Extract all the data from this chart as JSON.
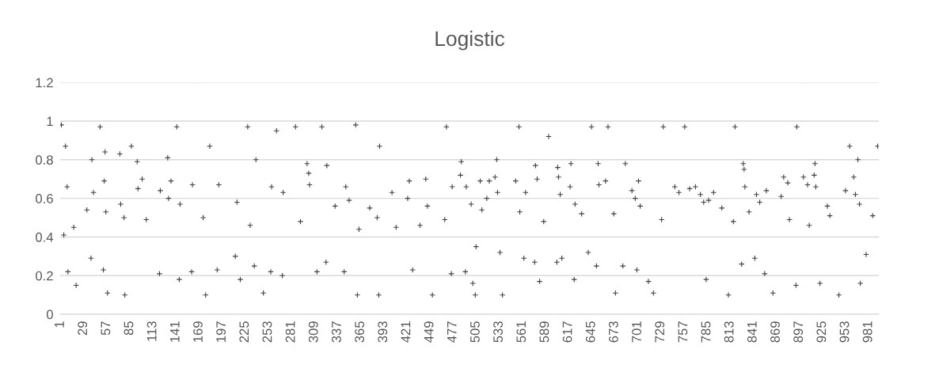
{
  "chart_data": {
    "type": "scatter",
    "title": "Logistic",
    "series": [
      {
        "color": "#404040",
        "marker": "cross",
        "x": [
          2,
          7,
          9,
          5,
          10,
          20,
          17,
          33,
          39,
          41,
          38,
          55,
          54,
          56,
          53,
          58,
          74,
          73,
          78,
          79,
          94,
          95,
          100,
          105,
          122,
          121,
          131,
          132,
          135,
          146,
          145,
          142,
          161,
          160,
          174,
          177,
          193,
          191,
          215,
          213,
          219,
          238,
          236,
          231,
          257,
          256,
          247,
          271,
          270,
          292,
          300,
          302,
          303,
          312,
          318,
          324,
          323,
          334,
          347,
          351,
          345,
          359,
          363,
          361,
          376,
          385,
          387,
          403,
          408,
          422,
          424,
          428,
          437,
          444,
          446,
          452,
          467,
          475,
          476,
          486,
          487,
          493,
          492,
          499,
          501,
          510,
          505,
          504,
          518,
          512,
          521,
          528,
          530,
          531,
          534,
          537,
          553,
          558,
          563,
          565,
          576,
          577,
          579,
          582,
          587,
          603,
          604,
          605,
          607,
          609,
          619,
          620,
          625,
          624,
          633,
          641,
          653,
          654,
          662,
          651,
          672,
          674,
          686,
          694,
          683,
          698,
          700,
          702,
          704,
          714,
          720,
          730,
          732,
          746,
          751,
          764,
          771,
          777,
          781,
          787,
          784,
          793,
          803,
          811,
          817,
          827,
          829,
          830,
          831,
          836,
          843,
          845,
          849,
          857,
          855,
          865,
          875,
          878,
          883,
          885,
          893,
          902,
          907,
          909,
          915,
          916,
          917,
          922,
          931,
          934,
          945,
          953,
          963,
          965,
          968,
          970,
          971,
          978,
          986,
          992,
          49,
          87,
          182,
          228,
          263,
          286,
          388,
          469,
          557,
          593,
          645,
          665,
          758,
          819,
          894,
          958
        ],
        "values": [
          0.98,
          0.87,
          0.66,
          0.41,
          0.22,
          0.15,
          0.45,
          0.54,
          0.8,
          0.63,
          0.29,
          0.84,
          0.69,
          0.53,
          0.23,
          0.11,
          0.57,
          0.83,
          0.5,
          0.1,
          0.79,
          0.65,
          0.7,
          0.49,
          0.64,
          0.21,
          0.81,
          0.6,
          0.69,
          0.57,
          0.18,
          0.97,
          0.67,
          0.22,
          0.5,
          0.1,
          0.67,
          0.23,
          0.58,
          0.3,
          0.18,
          0.8,
          0.25,
          0.46,
          0.66,
          0.22,
          0.11,
          0.63,
          0.2,
          0.48,
          0.78,
          0.73,
          0.67,
          0.22,
          0.97,
          0.77,
          0.27,
          0.56,
          0.66,
          0.59,
          0.22,
          0.98,
          0.44,
          0.1,
          0.55,
          0.5,
          0.1,
          0.63,
          0.45,
          0.6,
          0.69,
          0.23,
          0.46,
          0.7,
          0.56,
          0.1,
          0.49,
          0.21,
          0.66,
          0.72,
          0.79,
          0.66,
          0.22,
          0.57,
          0.16,
          0.69,
          0.35,
          0.1,
          0.6,
          0.54,
          0.69,
          0.71,
          0.8,
          0.63,
          0.32,
          0.1,
          0.69,
          0.53,
          0.29,
          0.63,
          0.27,
          0.77,
          0.7,
          0.17,
          0.48,
          0.27,
          0.76,
          0.71,
          0.62,
          0.29,
          0.66,
          0.78,
          0.57,
          0.18,
          0.52,
          0.32,
          0.78,
          0.67,
          0.69,
          0.25,
          0.52,
          0.11,
          0.78,
          0.64,
          0.25,
          0.6,
          0.23,
          0.69,
          0.56,
          0.17,
          0.11,
          0.49,
          0.97,
          0.66,
          0.63,
          0.65,
          0.66,
          0.62,
          0.58,
          0.59,
          0.18,
          0.63,
          0.55,
          0.1,
          0.48,
          0.26,
          0.78,
          0.75,
          0.66,
          0.53,
          0.29,
          0.62,
          0.58,
          0.64,
          0.21,
          0.11,
          0.61,
          0.71,
          0.68,
          0.49,
          0.15,
          0.71,
          0.67,
          0.46,
          0.72,
          0.78,
          0.66,
          0.16,
          0.56,
          0.51,
          0.1,
          0.64,
          0.71,
          0.62,
          0.8,
          0.57,
          0.16,
          0.31,
          0.51,
          0.87,
          0.97,
          0.87,
          0.87,
          0.97,
          0.95,
          0.97,
          0.87,
          0.97,
          0.97,
          0.92,
          0.97,
          0.97,
          0.97,
          0.97,
          0.97,
          0.87
        ]
      }
    ],
    "xlim": [
      0.5,
      993.5
    ],
    "xticks": [
      1,
      29,
      57,
      85,
      113,
      141,
      169,
      197,
      225,
      253,
      281,
      309,
      337,
      365,
      393,
      421,
      449,
      477,
      505,
      533,
      561,
      589,
      617,
      645,
      673,
      701,
      729,
      757,
      785,
      813,
      841,
      869,
      897,
      925,
      953,
      981
    ],
    "ylim": [
      0,
      1.2
    ],
    "yticks": [
      0,
      0.2,
      0.4,
      0.6,
      0.8,
      1,
      1.2
    ],
    "grid": "y",
    "legend": false
  }
}
